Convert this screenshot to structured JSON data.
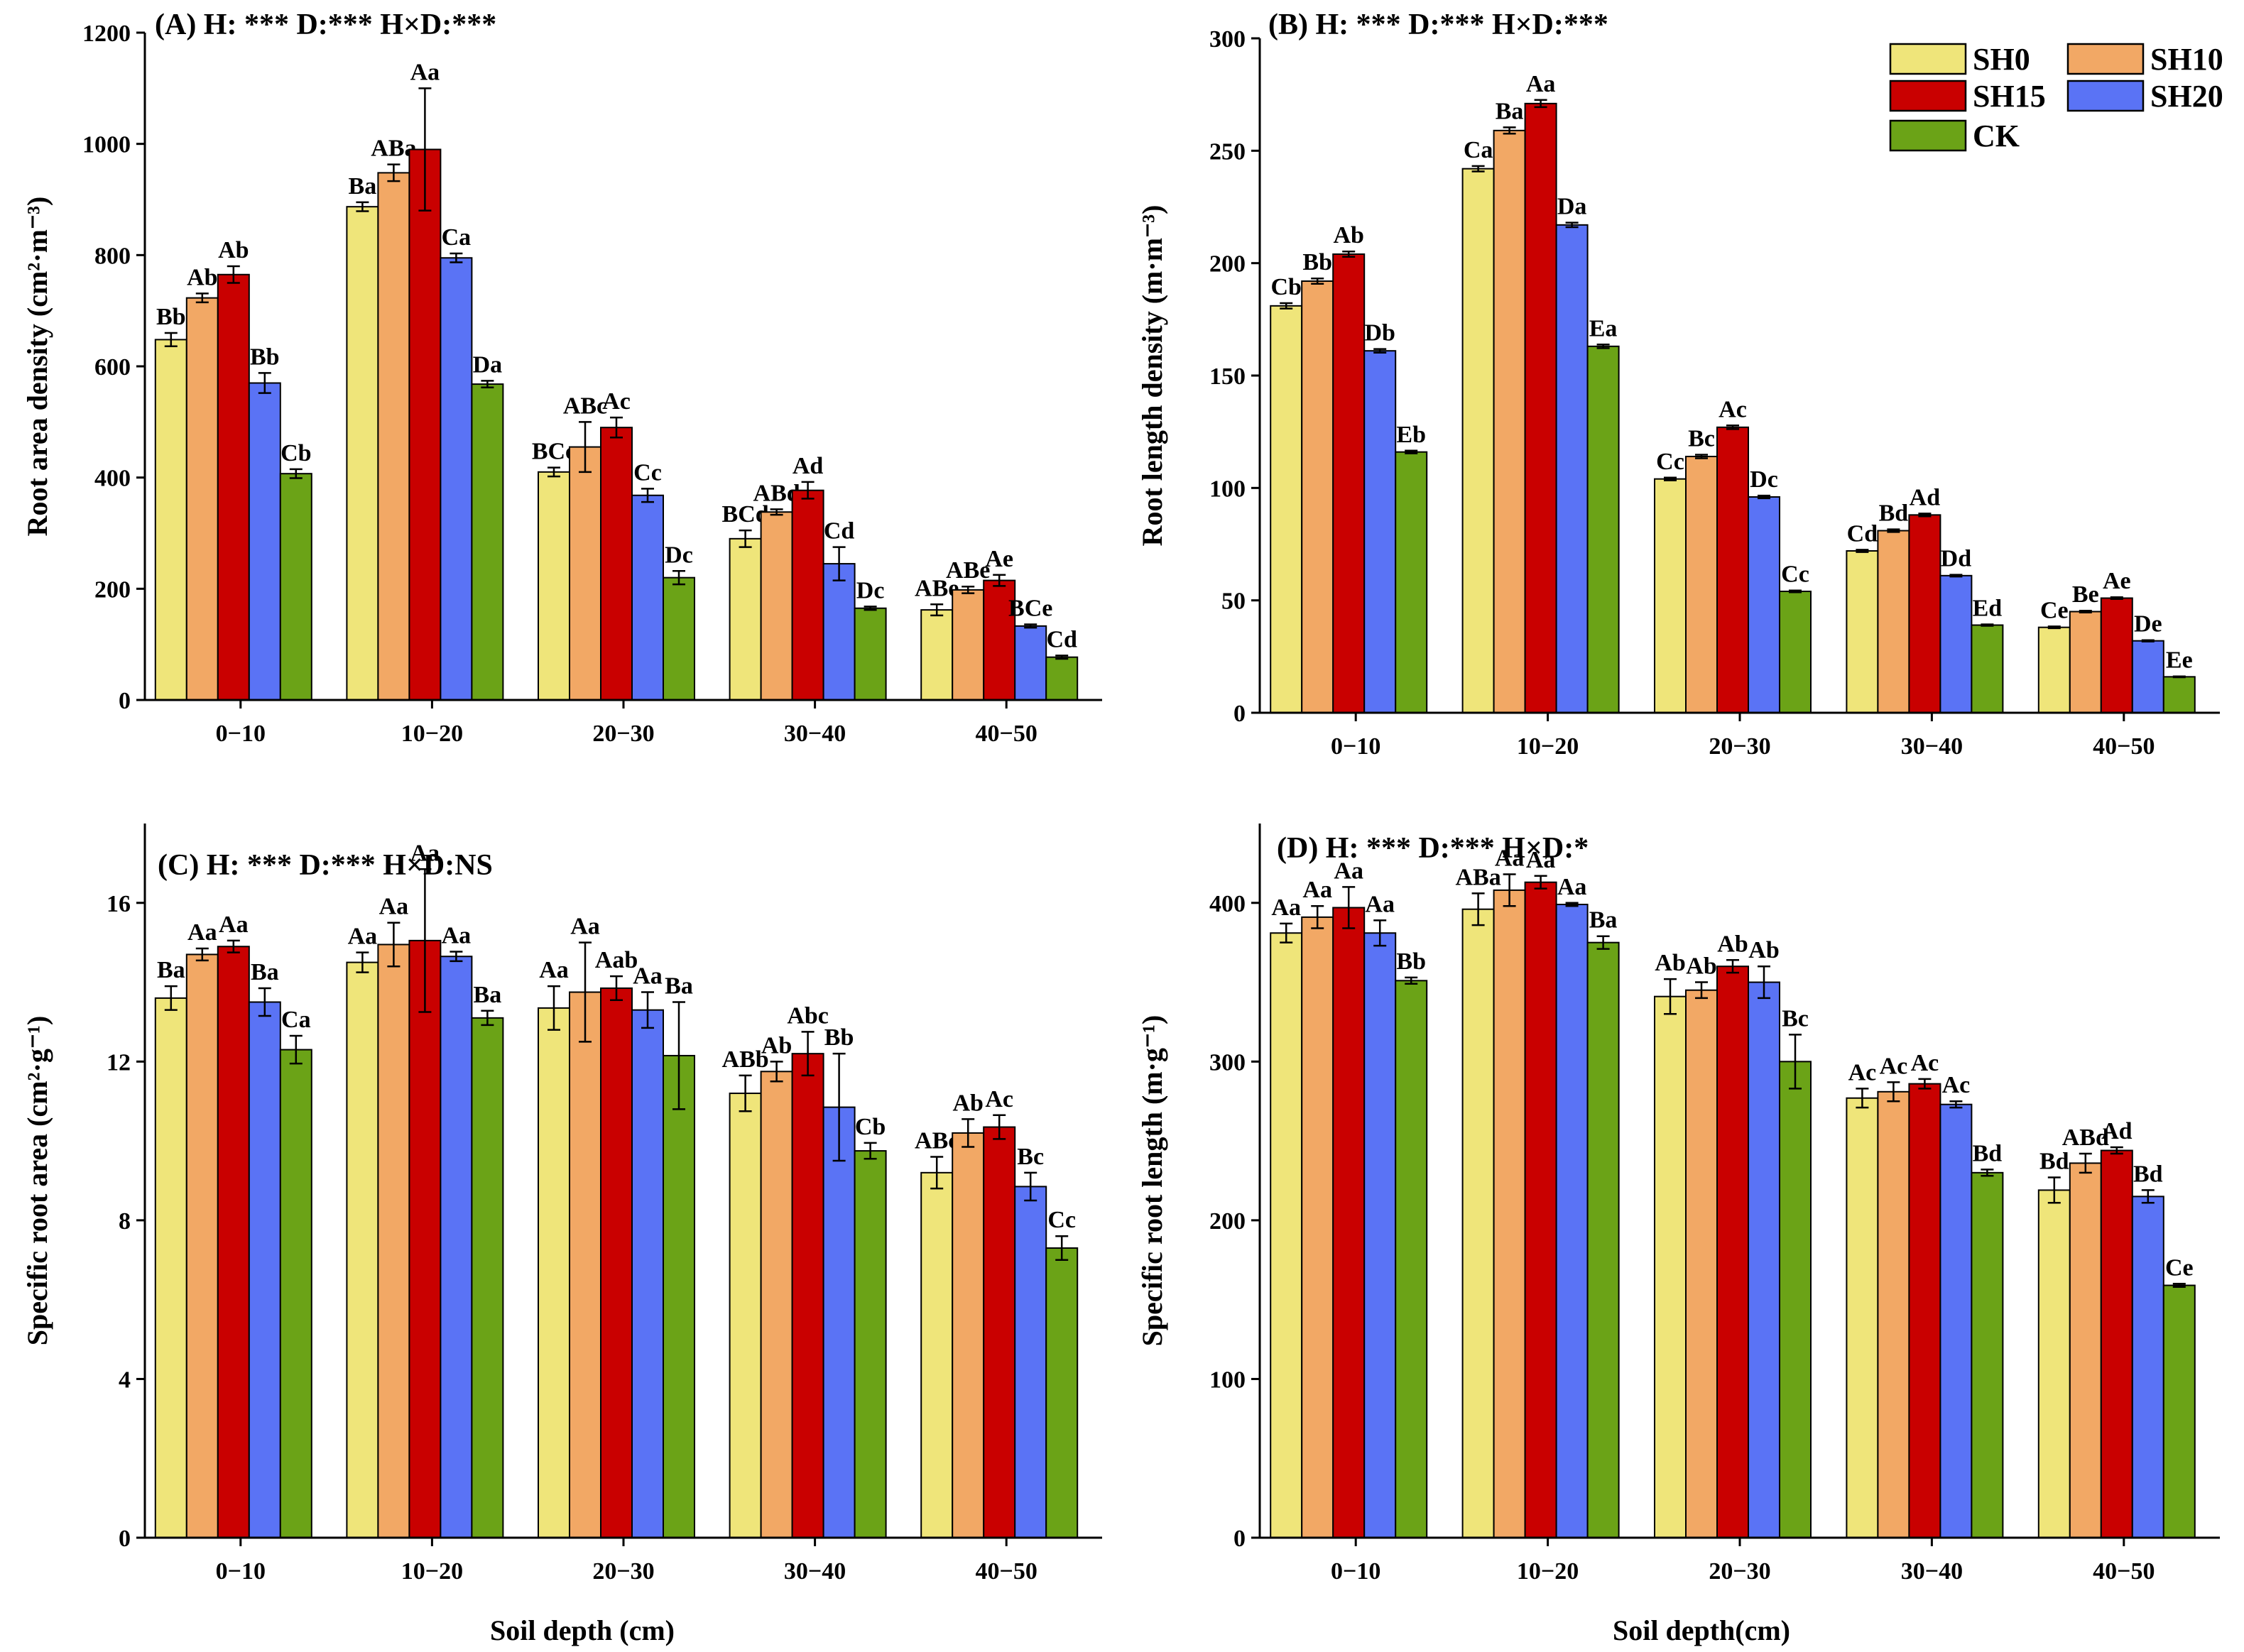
{
  "figure": {
    "x_axis_title": "Soil depth (cm)",
    "x_axis_title_right": "Soil depth(cm)"
  },
  "legend": {
    "entries": [
      {
        "name": "SH0",
        "color": "#efe57a"
      },
      {
        "name": "SH10",
        "color": "#f2a865"
      },
      {
        "name": "SH15",
        "color": "#c90000"
      },
      {
        "name": "SH20",
        "color": "#5a73f5"
      },
      {
        "name": "CK",
        "color": "#6ba317"
      }
    ]
  },
  "chart_data": [
    {
      "panel": "A",
      "type": "bar",
      "title": "(A)  H: ***    D:***    H×D:***",
      "ylabel": "Root area density (cm²·m⁻³)",
      "ylim": [
        0,
        1200
      ],
      "yticks": [
        0,
        200,
        400,
        600,
        800,
        1000,
        1200
      ],
      "categories": [
        "0−10",
        "10−20",
        "20−30",
        "30−40",
        "40−50"
      ],
      "series": [
        {
          "name": "SH0",
          "values": [
            648,
            887,
            410,
            290,
            162
          ],
          "errors": [
            12,
            8,
            8,
            15,
            10
          ],
          "labels": [
            "Bb",
            "Ba",
            "BCc",
            "BCd",
            "ABe"
          ]
        },
        {
          "name": "SH10",
          "values": [
            723,
            948,
            455,
            338,
            198
          ],
          "errors": [
            8,
            15,
            45,
            5,
            6
          ],
          "labels": [
            "Ab",
            "ABa",
            "ABc",
            "ABd",
            "ABe"
          ]
        },
        {
          "name": "SH15",
          "values": [
            765,
            990,
            490,
            377,
            215
          ],
          "errors": [
            15,
            110,
            18,
            15,
            10
          ],
          "labels": [
            "Ab",
            "Aa",
            "Ac",
            "Ad",
            "Ae"
          ]
        },
        {
          "name": "SH20",
          "values": [
            570,
            795,
            368,
            245,
            133
          ],
          "errors": [
            18,
            8,
            12,
            30,
            3
          ],
          "labels": [
            "Bb",
            "Ca",
            "Cc",
            "Cd",
            "BCe"
          ]
        },
        {
          "name": "CK",
          "values": [
            407,
            568,
            220,
            165,
            77
          ],
          "errors": [
            8,
            6,
            12,
            3,
            3
          ],
          "labels": [
            "Cb",
            "Da",
            "Dc",
            "Dc",
            "Cd"
          ]
        }
      ]
    },
    {
      "panel": "B",
      "type": "bar",
      "title": "(B)  H: ***    D:***    H×D:***",
      "ylabel": "Root length density (m·m⁻³)",
      "ylim": [
        0,
        300
      ],
      "yticks": [
        0,
        50,
        100,
        150,
        200,
        250,
        300
      ],
      "categories": [
        "0−10",
        "10−20",
        "20−30",
        "30−40",
        "40−50"
      ],
      "series": [
        {
          "name": "SH0",
          "values": [
            181,
            242,
            104,
            72,
            38
          ],
          "errors": [
            1.2,
            1.2,
            0.6,
            0.5,
            0.4
          ],
          "labels": [
            "Cb",
            "Ca",
            "Cc",
            "Cd",
            "Ce"
          ]
        },
        {
          "name": "SH10",
          "values": [
            192,
            259,
            114,
            81,
            45
          ],
          "errors": [
            1.2,
            1.4,
            0.8,
            0.6,
            0.4
          ],
          "labels": [
            "Bb",
            "Ba",
            "Bc",
            "Bd",
            "Be"
          ]
        },
        {
          "name": "SH15",
          "values": [
            204,
            271,
            127,
            88,
            51
          ],
          "errors": [
            1.2,
            1.6,
            0.8,
            0.6,
            0.4
          ],
          "labels": [
            "Ab",
            "Aa",
            "Ac",
            "Ad",
            "Ae"
          ]
        },
        {
          "name": "SH20",
          "values": [
            161,
            217,
            96,
            61,
            32
          ],
          "errors": [
            0.8,
            1.0,
            0.6,
            0.4,
            0.3
          ],
          "labels": [
            "Db",
            "Da",
            "Dc",
            "Dd",
            "De"
          ]
        },
        {
          "name": "CK",
          "values": [
            116,
            163,
            54,
            39,
            16
          ],
          "errors": [
            0.6,
            0.8,
            0.4,
            0.3,
            0.2
          ],
          "labels": [
            "Eb",
            "Ea",
            "Cc",
            "Ed",
            "Ee"
          ]
        }
      ]
    },
    {
      "panel": "C",
      "type": "bar",
      "title": "(C)  H: ***    D:***    H×D:NS",
      "ylabel": "Specific root area (cm²·g⁻¹)",
      "ylim": [
        0,
        18
      ],
      "yticks": [
        0,
        4,
        8,
        12,
        16
      ],
      "categories": [
        "0−10",
        "10−20",
        "20−30",
        "30−40",
        "40−50"
      ],
      "series": [
        {
          "name": "SH0",
          "values": [
            13.6,
            14.5,
            13.35,
            11.2,
            9.2
          ],
          "errors": [
            0.3,
            0.25,
            0.55,
            0.45,
            0.4
          ],
          "labels": [
            "Ba",
            "Aa",
            "Aa",
            "ABb",
            "ABc"
          ]
        },
        {
          "name": "SH10",
          "values": [
            14.7,
            14.95,
            13.75,
            11.75,
            10.2
          ],
          "errors": [
            0.15,
            0.55,
            1.25,
            0.25,
            0.35
          ],
          "labels": [
            "Aa",
            "Aa",
            "Aa",
            "Ab",
            "Ab"
          ]
        },
        {
          "name": "SH15",
          "values": [
            14.9,
            15.05,
            13.85,
            12.2,
            10.35
          ],
          "errors": [
            0.15,
            1.8,
            0.3,
            0.55,
            0.3
          ],
          "labels": [
            "Aa",
            "Aa",
            "Aab",
            "Abc",
            "Ac"
          ]
        },
        {
          "name": "SH20",
          "values": [
            13.5,
            14.65,
            13.3,
            10.85,
            8.85
          ],
          "errors": [
            0.35,
            0.12,
            0.45,
            1.35,
            0.35
          ],
          "labels": [
            "Ba",
            "Aa",
            "Aa",
            "Bb",
            "Bc"
          ]
        },
        {
          "name": "CK",
          "values": [
            12.3,
            13.1,
            12.15,
            9.75,
            7.3
          ],
          "errors": [
            0.35,
            0.18,
            1.35,
            0.2,
            0.3
          ],
          "labels": [
            "Ca",
            "Ba",
            "Ba",
            "Cb",
            "Cc"
          ]
        }
      ]
    },
    {
      "panel": "D",
      "type": "bar",
      "title": "(D)  H: ***    D:***    H×D:*",
      "ylabel": "Specific root length (m·g⁻¹)",
      "ylim": [
        0,
        450
      ],
      "yticks": [
        0,
        100,
        200,
        300,
        400
      ],
      "categories": [
        "0−10",
        "10−20",
        "20−30",
        "30−40",
        "40−50"
      ],
      "series": [
        {
          "name": "SH0",
          "values": [
            381,
            396,
            341,
            277,
            219
          ],
          "errors": [
            6,
            10,
            11,
            6,
            8
          ],
          "labels": [
            "Aa",
            "ABa",
            "Ab",
            "Ac",
            "Bd"
          ]
        },
        {
          "name": "SH10",
          "values": [
            391,
            408,
            345,
            281,
            236
          ],
          "errors": [
            7,
            10,
            5,
            6,
            6
          ],
          "labels": [
            "Aa",
            "Aa",
            "Ab",
            "Ac",
            "ABd"
          ]
        },
        {
          "name": "SH15",
          "values": [
            397,
            413,
            360,
            286,
            244
          ],
          "errors": [
            13,
            4,
            4,
            3,
            2
          ],
          "labels": [
            "Aa",
            "Aa",
            "Ab",
            "Ac",
            "Ad"
          ]
        },
        {
          "name": "SH20",
          "values": [
            381,
            399,
            350,
            273,
            215
          ],
          "errors": [
            8,
            1,
            10,
            2,
            4
          ],
          "labels": [
            "Aa",
            "Aa",
            "Ab",
            "Ac",
            "Bd"
          ]
        },
        {
          "name": "CK",
          "values": [
            351,
            375,
            300,
            230,
            159
          ],
          "errors": [
            2,
            4,
            17,
            2,
            1
          ],
          "labels": [
            "Bb",
            "Ba",
            "Bc",
            "Bd",
            "Ce"
          ]
        }
      ]
    }
  ]
}
